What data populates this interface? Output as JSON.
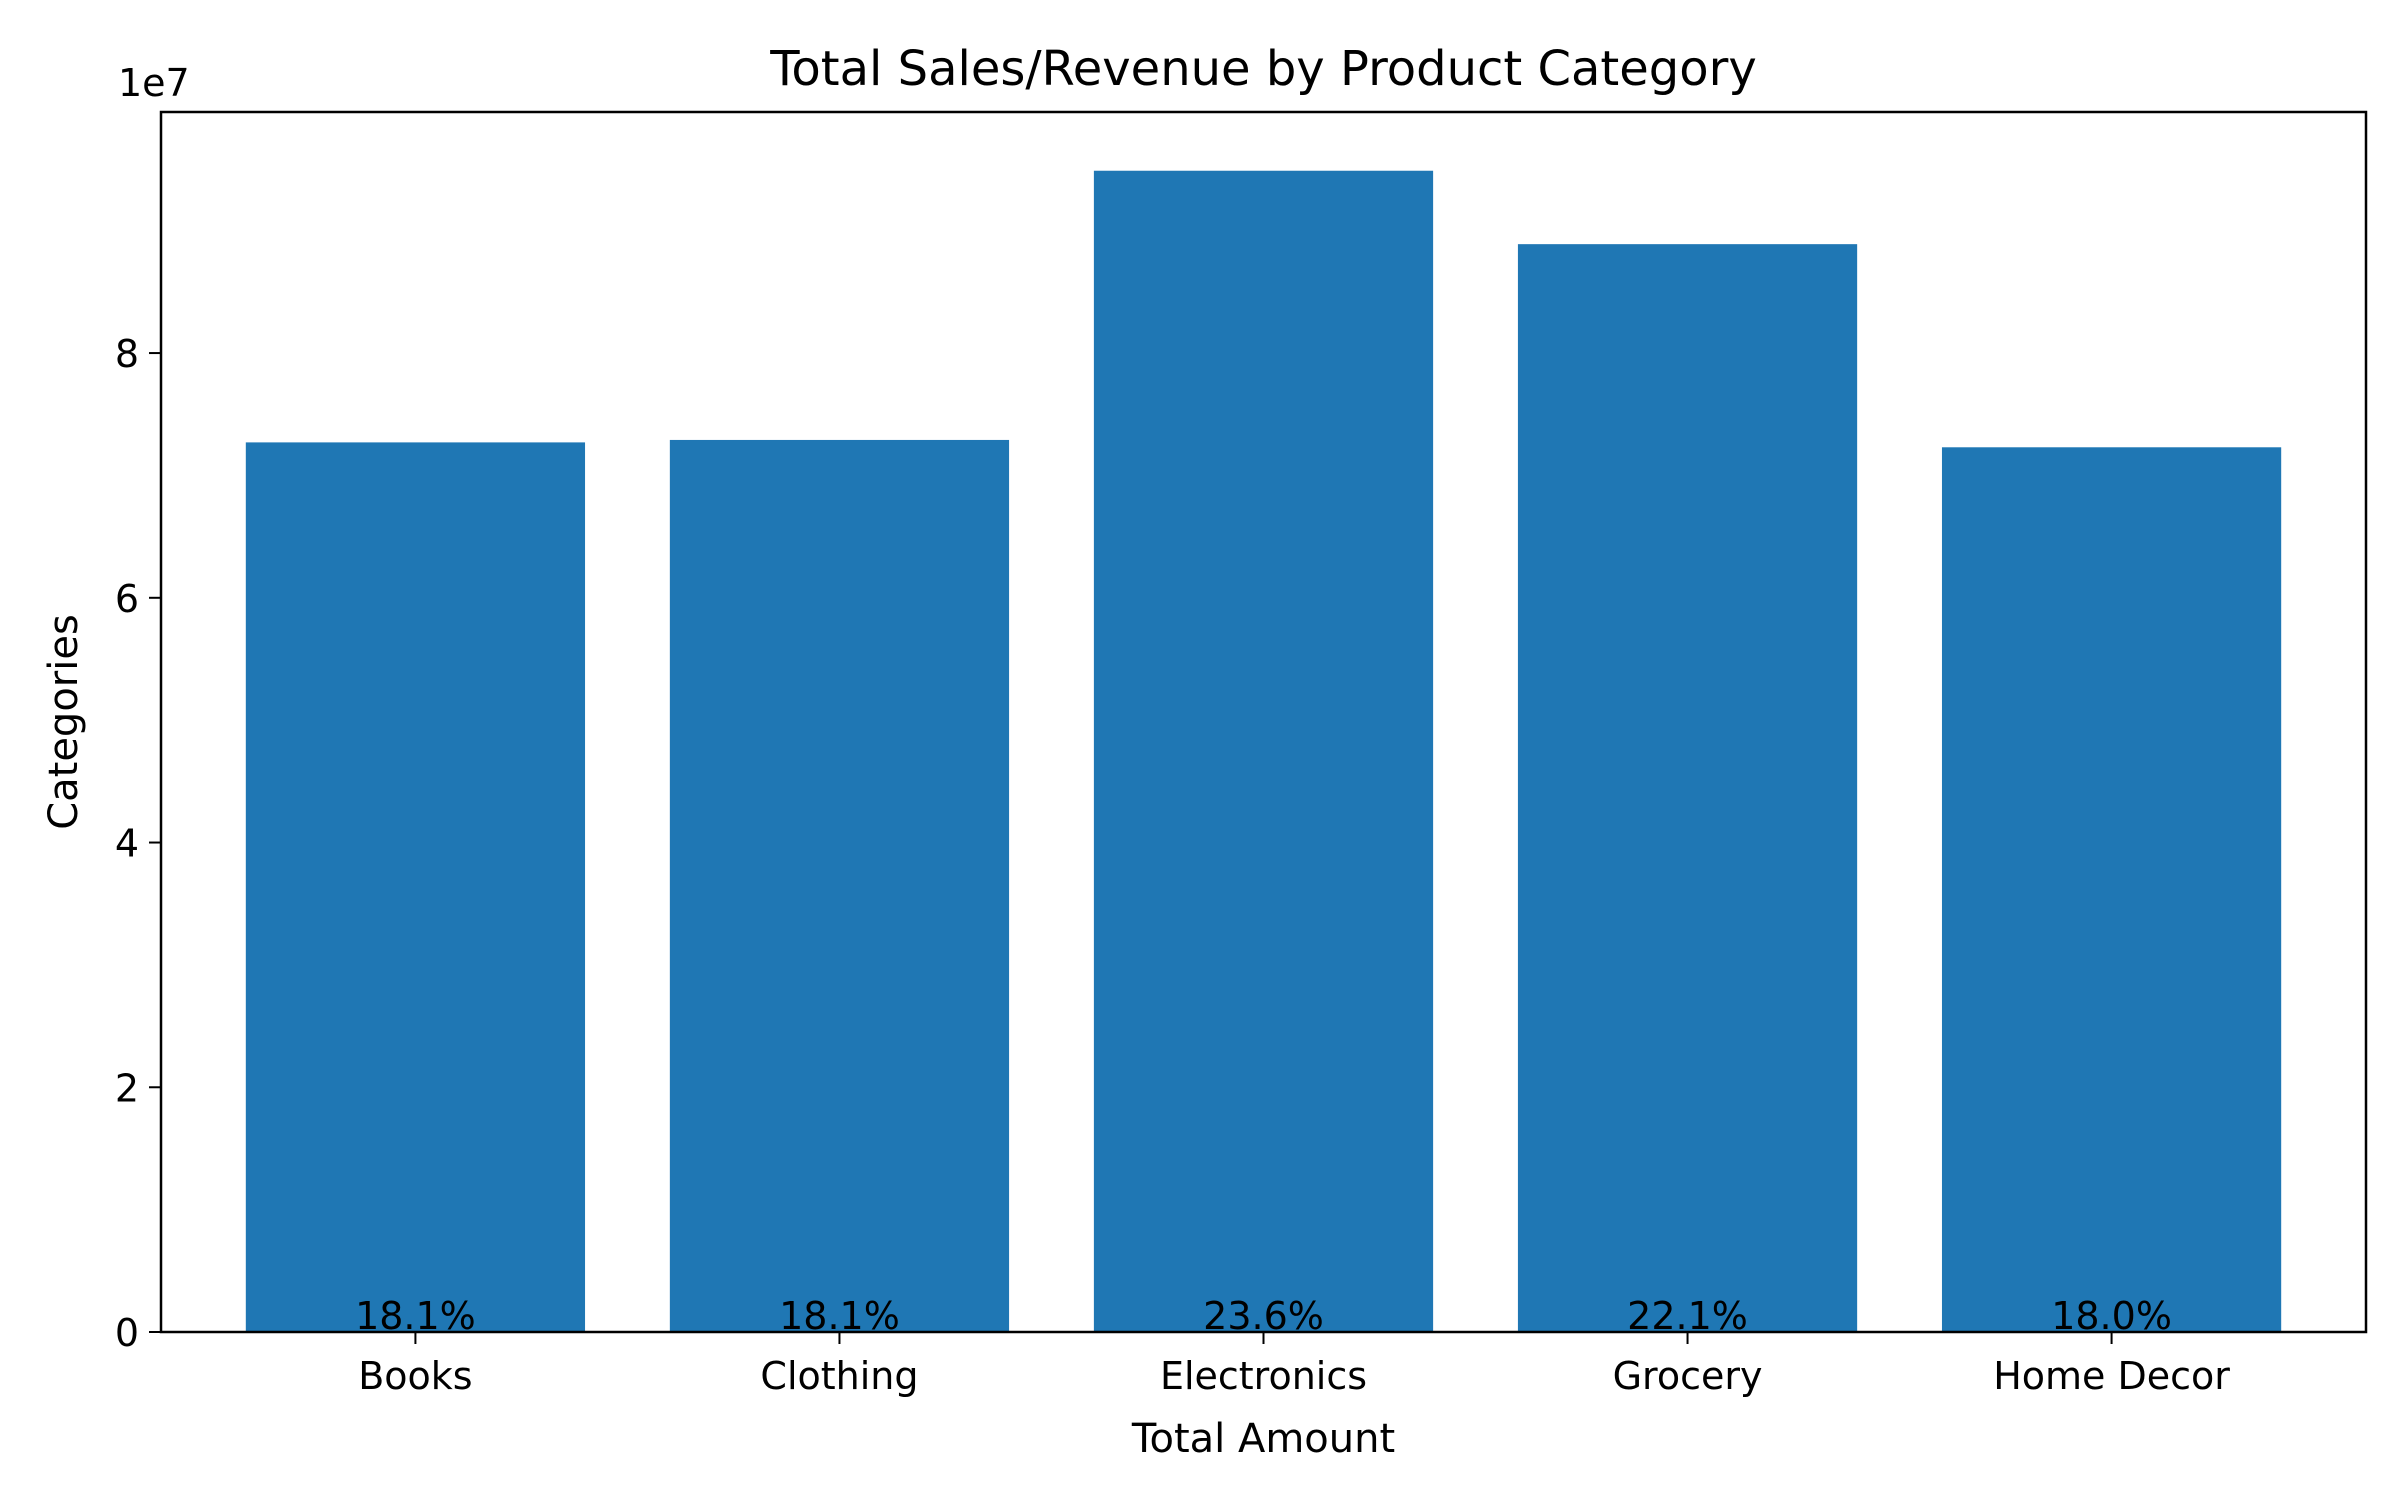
{
  "chart_data": {
    "type": "bar",
    "title": "Total Sales/Revenue by Product Category",
    "xlabel": "Total Amount",
    "ylabel": "Categories",
    "y_offset_label": "1e7",
    "categories": [
      "Books",
      "Clothing",
      "Electronics",
      "Grocery",
      "Home Decor"
    ],
    "values": [
      72700000,
      72900000,
      94900000,
      88900000,
      72300000
    ],
    "bar_labels": [
      "18.1%",
      "18.1%",
      "23.6%",
      "22.1%",
      "18.0%"
    ],
    "ylim": [
      0,
      99700000
    ],
    "yticks": [
      0,
      20000000,
      40000000,
      60000000,
      80000000
    ],
    "ytick_labels": [
      "0",
      "2",
      "4",
      "6",
      "8"
    ],
    "bar_color": "#1f77b4",
    "grid": false
  }
}
